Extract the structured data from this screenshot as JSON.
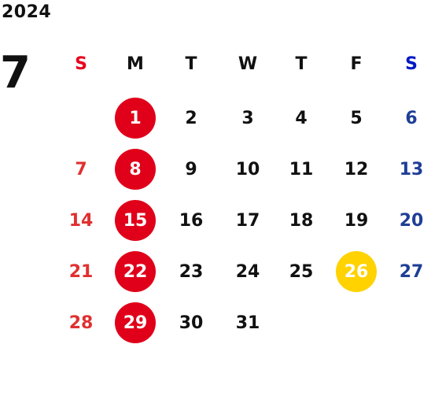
{
  "year": "2024",
  "month": "7",
  "weekdays": [
    {
      "label": "S",
      "color": "#e8001c"
    },
    {
      "label": "M",
      "color": "#111111"
    },
    {
      "label": "T",
      "color": "#111111"
    },
    {
      "label": "W",
      "color": "#111111"
    },
    {
      "label": "T",
      "color": "#111111"
    },
    {
      "label": "F",
      "color": "#111111"
    },
    {
      "label": "S",
      "color": "#0018c8"
    }
  ],
  "colors": {
    "sunday": "#e03030",
    "saturday": "#1f3f96",
    "weekday": "#111111",
    "holiday_circle": "#e0001a",
    "highlight_circle": "#ffd200",
    "circle_text": "#ffffff"
  },
  "weeks": [
    [
      null,
      {
        "day": "1",
        "mark": "holiday"
      },
      {
        "day": "2"
      },
      {
        "day": "3"
      },
      {
        "day": "4"
      },
      {
        "day": "5"
      },
      {
        "day": "6"
      }
    ],
    [
      {
        "day": "7"
      },
      {
        "day": "8",
        "mark": "holiday"
      },
      {
        "day": "9"
      },
      {
        "day": "10"
      },
      {
        "day": "11"
      },
      {
        "day": "12"
      },
      {
        "day": "13"
      }
    ],
    [
      {
        "day": "14"
      },
      {
        "day": "15",
        "mark": "holiday"
      },
      {
        "day": "16"
      },
      {
        "day": "17"
      },
      {
        "day": "18"
      },
      {
        "day": "19"
      },
      {
        "day": "20"
      }
    ],
    [
      {
        "day": "21"
      },
      {
        "day": "22",
        "mark": "holiday"
      },
      {
        "day": "23"
      },
      {
        "day": "24"
      },
      {
        "day": "25"
      },
      {
        "day": "26",
        "mark": "highlight"
      },
      {
        "day": "27"
      }
    ],
    [
      {
        "day": "28"
      },
      {
        "day": "29",
        "mark": "holiday"
      },
      {
        "day": "30"
      },
      {
        "day": "31"
      },
      null,
      null,
      null
    ]
  ]
}
